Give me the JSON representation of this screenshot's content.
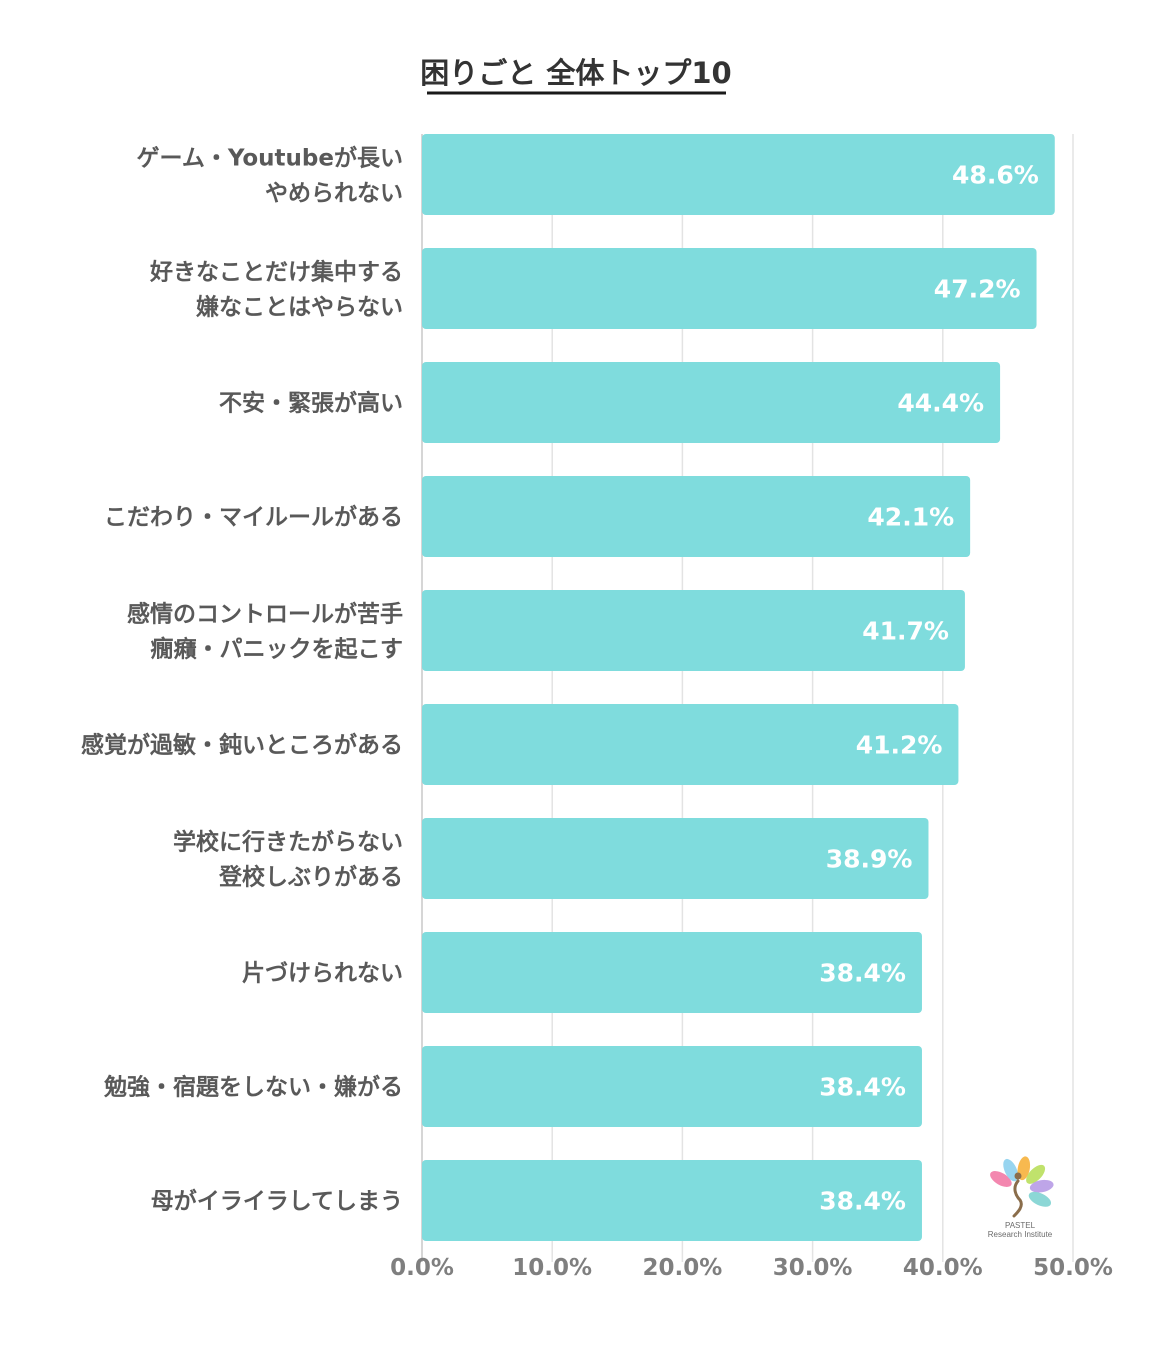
{
  "chart_data": {
    "type": "bar",
    "orientation": "horizontal",
    "title": "困りごと 全体トップ10",
    "categories": [
      [
        "ゲーム・Youtubeが長い",
        "やめられない"
      ],
      [
        "好きなことだけ集中する",
        "嫌なことはやらない"
      ],
      [
        "不安・緊張が高い"
      ],
      [
        "こだわり・マイルールがある"
      ],
      [
        "感情のコントロールが苦手",
        "癇癪・パニックを起こす"
      ],
      [
        "感覚が過敏・鈍いところがある"
      ],
      [
        "学校に行きたがらない",
        "登校しぶりがある"
      ],
      [
        "片づけられない"
      ],
      [
        "勉強・宿題をしない・嫌がる"
      ],
      [
        "母がイライラしてしまう"
      ]
    ],
    "values": [
      48.6,
      47.2,
      44.4,
      42.1,
      41.7,
      41.2,
      38.9,
      38.4,
      38.4,
      38.4
    ],
    "value_labels": [
      "48.6%",
      "47.2%",
      "44.4%",
      "42.1%",
      "41.7%",
      "41.2%",
      "38.9%",
      "38.4%",
      "38.4%",
      "38.4%"
    ],
    "xlim": [
      0,
      50
    ],
    "xticks": [
      0,
      10,
      20,
      30,
      40,
      50
    ],
    "xtick_labels": [
      "0.0%",
      "10.0%",
      "20.0%",
      "30.0%",
      "40.0%",
      "50.0%"
    ],
    "xlabel": "",
    "ylabel": "",
    "grid": true,
    "bar_color": "#7fdcdd",
    "grid_color": "#e3e3e3"
  },
  "logo": {
    "name": "PASTEL",
    "subtitle": "Research Institute",
    "colors": [
      "#f27aa6",
      "#8dd0ee",
      "#f6b13c",
      "#b9df5c",
      "#b79be6",
      "#7fd3d2"
    ]
  }
}
